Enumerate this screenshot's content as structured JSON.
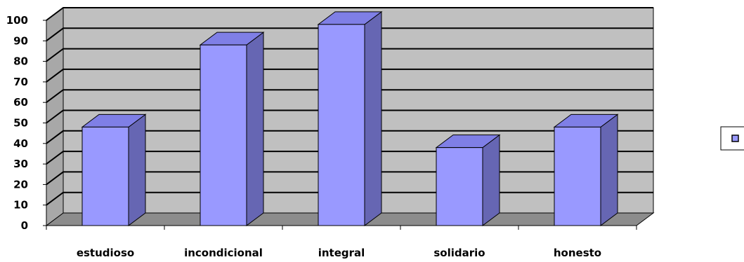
{
  "chart_data": {
    "type": "bar",
    "style": "3d-column",
    "categories": [
      "estudioso",
      "incondicional",
      "integral",
      "solidario",
      "honesto"
    ],
    "values": [
      48,
      88,
      98,
      38,
      48
    ],
    "ylim": [
      0,
      100
    ],
    "y_ticks": [
      "0",
      "10",
      "20",
      "30",
      "40",
      "50",
      "60",
      "70",
      "80",
      "90",
      "100"
    ],
    "grid": true,
    "legend": "right",
    "colors": {
      "bar_front": "#9999ff",
      "bar_top": "#7f7fe6",
      "bar_side": "#6666b3",
      "wall": "#c0c0c0",
      "floor": "#8c8c8c",
      "legend_swatch": "#9999ff"
    }
  }
}
